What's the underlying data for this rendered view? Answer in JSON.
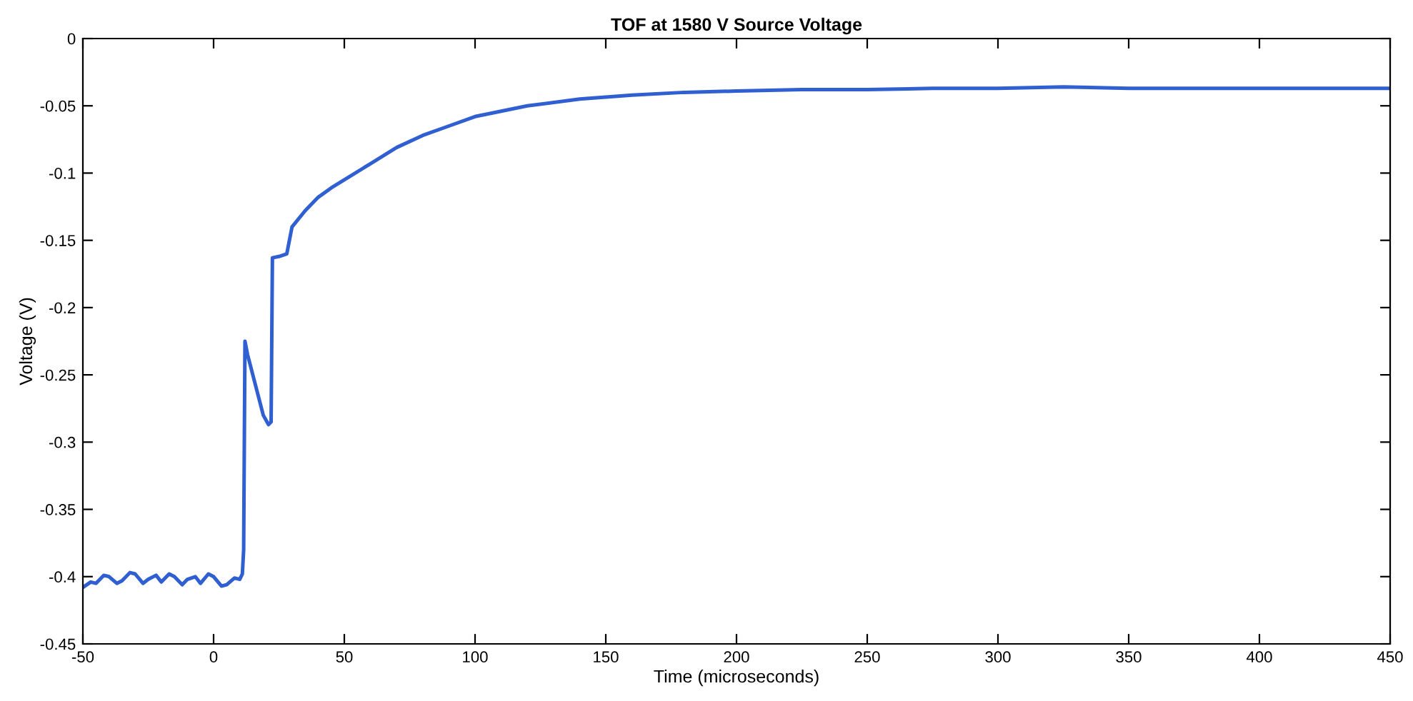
{
  "chart_data": {
    "type": "line",
    "title": "TOF at 1580 V Source Voltage",
    "xlabel": "Time (microseconds)",
    "ylabel": "Voltage (V)",
    "series": [
      {
        "color": "#2f5fd0",
        "x": [
          -50,
          -47,
          -45,
          -42,
          -40,
          -37,
          -35,
          -32,
          -30,
          -27,
          -25,
          -22,
          -20,
          -17,
          -15,
          -12,
          -10,
          -7,
          -5,
          -2,
          0,
          3,
          5,
          8,
          10,
          11,
          11.5,
          12,
          13,
          15,
          17,
          19,
          21,
          22,
          22.5,
          25,
          28,
          30,
          35,
          40,
          45,
          50,
          60,
          70,
          80,
          90,
          100,
          110,
          120,
          140,
          160,
          180,
          200,
          225,
          250,
          275,
          300,
          325,
          350,
          375,
          400,
          425,
          450
        ],
        "values": [
          -0.408,
          -0.404,
          -0.405,
          -0.399,
          -0.4,
          -0.405,
          -0.403,
          -0.397,
          -0.398,
          -0.405,
          -0.402,
          -0.399,
          -0.404,
          -0.398,
          -0.4,
          -0.406,
          -0.402,
          -0.4,
          -0.405,
          -0.398,
          -0.4,
          -0.407,
          -0.406,
          -0.401,
          -0.402,
          -0.398,
          -0.38,
          -0.225,
          -0.235,
          -0.25,
          -0.265,
          -0.28,
          -0.287,
          -0.285,
          -0.163,
          -0.162,
          -0.16,
          -0.14,
          -0.128,
          -0.118,
          -0.111,
          -0.105,
          -0.093,
          -0.081,
          -0.072,
          -0.065,
          -0.058,
          -0.054,
          -0.05,
          -0.045,
          -0.042,
          -0.04,
          -0.039,
          -0.038,
          -0.038,
          -0.037,
          -0.037,
          -0.036,
          -0.037,
          -0.037,
          -0.037,
          -0.037,
          -0.037
        ]
      }
    ],
    "xlim": [
      -50,
      450
    ],
    "ylim": [
      -0.45,
      0
    ],
    "xticks": [
      -50,
      0,
      50,
      100,
      150,
      200,
      250,
      300,
      350,
      400,
      450
    ],
    "yticks": [
      -0.45,
      -0.4,
      -0.35,
      -0.3,
      -0.25,
      -0.2,
      -0.15,
      -0.1,
      -0.05,
      0
    ],
    "grid": false,
    "marker": "none",
    "line_style": "solid"
  }
}
